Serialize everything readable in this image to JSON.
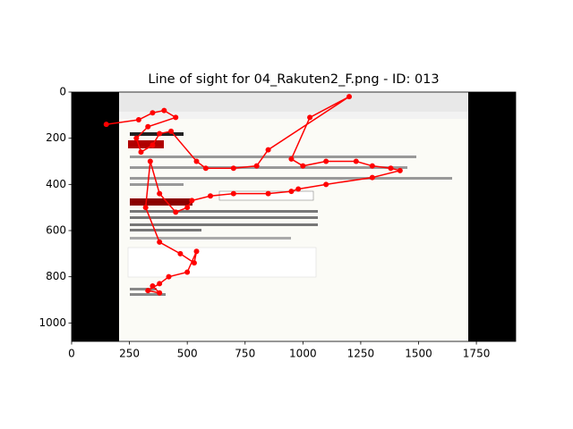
{
  "chart_data": {
    "type": "line",
    "title": "Line of sight for 04_Rakuten2_F.png - ID: 013",
    "xlim": [
      0,
      1920
    ],
    "ylim": [
      1080,
      0
    ],
    "xticks": [
      0,
      250,
      500,
      750,
      1000,
      1250,
      1500,
      1750
    ],
    "yticks": [
      0,
      200,
      400,
      600,
      800,
      1000
    ],
    "series": [
      {
        "color": "#ff0000",
        "x": [
          150,
          290,
          350,
          400,
          450,
          330,
          280,
          300,
          350,
          380,
          430,
          540,
          580,
          700,
          800,
          850,
          1200,
          1030,
          950,
          1000,
          1100,
          1230,
          1300,
          1380,
          1420,
          1300,
          1100,
          980,
          950,
          850,
          700,
          600,
          520,
          500,
          450,
          380,
          340,
          320,
          380,
          470,
          530,
          540,
          500,
          420,
          380,
          330,
          380,
          350
        ],
        "y": [
          140,
          120,
          90,
          80,
          110,
          150,
          200,
          260,
          230,
          180,
          170,
          300,
          330,
          330,
          320,
          250,
          20,
          110,
          290,
          320,
          300,
          300,
          320,
          330,
          340,
          370,
          400,
          420,
          430,
          440,
          440,
          450,
          470,
          500,
          520,
          440,
          300,
          500,
          650,
          700,
          740,
          690,
          780,
          800,
          830,
          860,
          870,
          840
        ]
      }
    ]
  }
}
